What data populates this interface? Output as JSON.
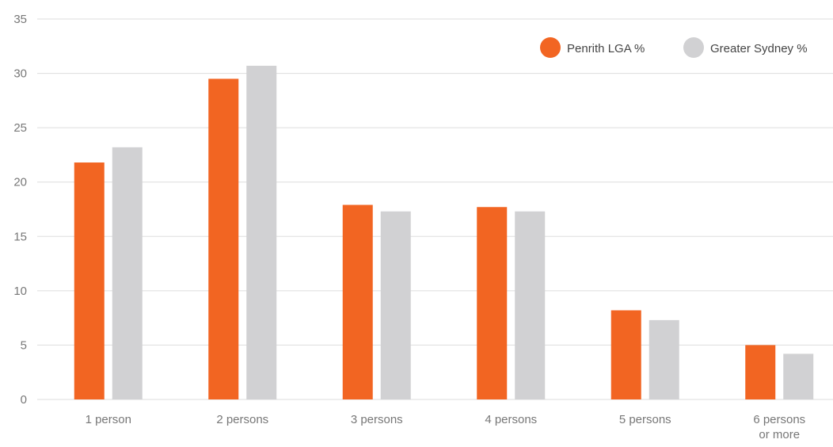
{
  "chart_data": {
    "type": "bar",
    "title": "",
    "xlabel": "",
    "ylabel": "",
    "categories": [
      [
        "1 person"
      ],
      [
        "2 persons"
      ],
      [
        "3 persons"
      ],
      [
        "4 persons"
      ],
      [
        "5 persons"
      ],
      [
        "6 persons",
        "or more"
      ]
    ],
    "series": [
      {
        "name": "Penrith LGA %",
        "color": "#f26522",
        "values": [
          21.8,
          29.5,
          17.9,
          17.7,
          8.2,
          5.0
        ]
      },
      {
        "name": "Greater Sydney %",
        "color": "#d1d1d3",
        "values": [
          23.2,
          30.7,
          17.3,
          17.3,
          7.3,
          4.2
        ]
      }
    ],
    "ylim": [
      0,
      35
    ],
    "yticks": [
      0,
      5,
      10,
      15,
      20,
      25,
      30,
      35
    ],
    "grid": true,
    "legend_position": "top-right"
  }
}
